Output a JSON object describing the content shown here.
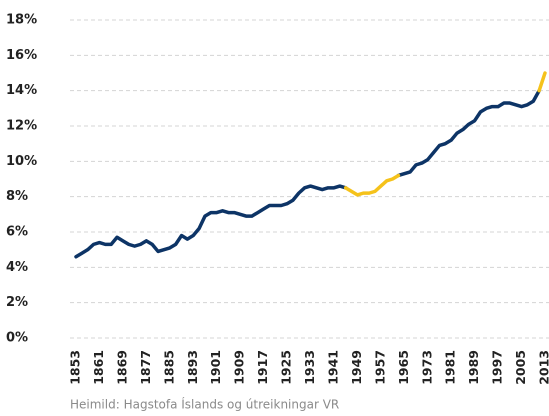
{
  "chart_data": {
    "type": "line",
    "x": [
      1853,
      1855,
      1857,
      1859,
      1861,
      1863,
      1865,
      1867,
      1869,
      1871,
      1873,
      1875,
      1877,
      1879,
      1881,
      1883,
      1885,
      1887,
      1889,
      1891,
      1893,
      1895,
      1897,
      1899,
      1901,
      1903,
      1905,
      1907,
      1909,
      1911,
      1913,
      1915,
      1917,
      1919,
      1921,
      1923,
      1925,
      1927,
      1929,
      1931,
      1933,
      1935,
      1937,
      1939,
      1941,
      1943,
      1945,
      1947,
      1949,
      1951,
      1953,
      1955,
      1957,
      1959,
      1961,
      1963,
      1965,
      1967,
      1969,
      1971,
      1973,
      1975,
      1977,
      1979,
      1981,
      1983,
      1985,
      1987,
      1989,
      1991,
      1993,
      1995,
      1997,
      1999,
      2001,
      2003,
      2005,
      2007,
      2009,
      2011,
      2013
    ],
    "series": [
      {
        "color": "#0d3466",
        "values": [
          4.6,
          4.8,
          5.0,
          5.3,
          5.4,
          5.3,
          5.3,
          5.7,
          5.5,
          5.3,
          5.2,
          5.3,
          5.5,
          5.3,
          4.9,
          5.0,
          5.1,
          5.3,
          5.8,
          5.6,
          5.8,
          6.2,
          6.9,
          7.1,
          7.1,
          7.2,
          7.1,
          7.1,
          7.0,
          6.9,
          6.9,
          7.1,
          7.3,
          7.5,
          7.5,
          7.5,
          7.6,
          7.8,
          8.2,
          8.5,
          8.6,
          8.5,
          8.4,
          8.5,
          8.5,
          8.6,
          8.5,
          null,
          null,
          null,
          null,
          null,
          null,
          null,
          null,
          9.2,
          9.3,
          9.4,
          9.8,
          9.9,
          10.1,
          10.5,
          10.9,
          11.0,
          11.2,
          11.6,
          11.8,
          12.1,
          12.3,
          12.8,
          13.0,
          13.1,
          13.1,
          13.3,
          13.3,
          13.2,
          13.1,
          13.2,
          13.4,
          14.0,
          null
        ]
      },
      {
        "color": "#f5c21b",
        "values": [
          null,
          null,
          null,
          null,
          null,
          null,
          null,
          null,
          null,
          null,
          null,
          null,
          null,
          null,
          null,
          null,
          null,
          null,
          null,
          null,
          null,
          null,
          null,
          null,
          null,
          null,
          null,
          null,
          null,
          null,
          null,
          null,
          null,
          null,
          null,
          null,
          null,
          null,
          null,
          null,
          null,
          null,
          null,
          null,
          null,
          null,
          8.5,
          8.3,
          8.1,
          8.2,
          8.2,
          8.3,
          8.6,
          8.9,
          9.0,
          9.2,
          null,
          null,
          null,
          null,
          null,
          null,
          null,
          null,
          null,
          null,
          null,
          null,
          null,
          null,
          null,
          null,
          null,
          null,
          null,
          null,
          null,
          null,
          null,
          14.0,
          15.0
        ]
      }
    ],
    "xlim": [
      1853,
      2013
    ],
    "xticks": [
      1853,
      1861,
      1869,
      1877,
      1885,
      1893,
      1901,
      1909,
      1917,
      1925,
      1933,
      1941,
      1949,
      1957,
      1965,
      1973,
      1981,
      1989,
      1997,
      2005,
      2013
    ],
    "ylim": [
      0,
      18
    ],
    "yticks": [
      {
        "value": 0,
        "label": "0%"
      },
      {
        "value": 2,
        "label": "2%"
      },
      {
        "value": 4,
        "label": "4%"
      },
      {
        "value": 6,
        "label": "6%"
      },
      {
        "value": 8,
        "label": "8%"
      },
      {
        "value": 10,
        "label": "10%"
      },
      {
        "value": 12,
        "label": "12%"
      },
      {
        "value": 14,
        "label": "14%"
      },
      {
        "value": 16,
        "label": "16%"
      },
      {
        "value": 18,
        "label": "18%"
      }
    ],
    "grid": true,
    "source": "Heimild: Hagstofa Íslands og útreikningar VR"
  }
}
